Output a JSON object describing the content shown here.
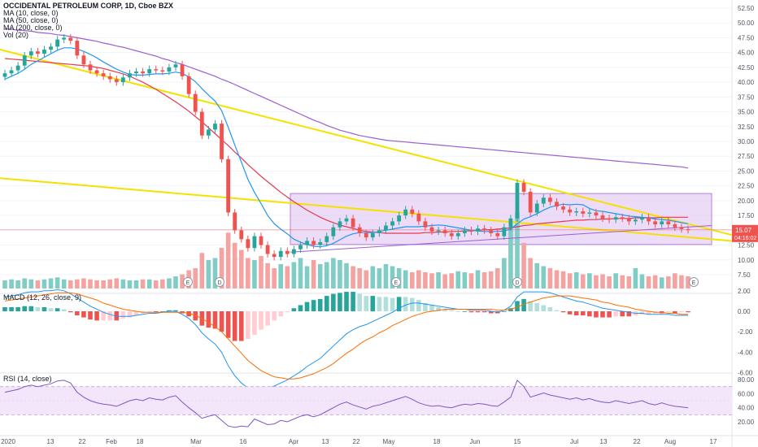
{
  "header": {
    "title": "OCCIDENTAL PETROLEUM CORP, 1D, Cboe BZX",
    "ma10": "MA (10, close, 0)",
    "ma50": "MA (50, close, 0)",
    "ma200": "MA (200, close, 0)",
    "vol": "Vol (20)"
  },
  "panes": {
    "macd_label": "MACD (12, 26, close, 9)",
    "rsi_label": "RSI (14, close)"
  },
  "price_tag": {
    "value": "15.07",
    "countdown": "04:16:02"
  },
  "colors": {
    "up": "#26a69a",
    "down": "#ef5350",
    "up_vol": "#7fcdc4",
    "down_vol": "#f4a3a1",
    "ma10": "#2196f3",
    "ma50": "#e53950",
    "ma200": "#9c5fd0",
    "trendline": "#f5e100",
    "box": "#e1c4f2",
    "rsi_band": "#f3e6fb",
    "macd": "#2196f3",
    "signal": "#ff6d00",
    "grid": "#f0f3fa"
  },
  "chart_data": {
    "type": "candlestick",
    "symbol": "OCCIDENTAL PETROLEUM CORP",
    "interval": "1D",
    "exchange": "Cboe BZX",
    "price_axis": {
      "ticks": [
        "52.50",
        "50.00",
        "47.50",
        "45.00",
        "42.50",
        "40.00",
        "37.50",
        "35.00",
        "32.50",
        "30.00",
        "27.50",
        "25.00",
        "22.50",
        "20.00",
        "17.50",
        "15.00",
        "12.50",
        "10.00",
        "7.50"
      ]
    },
    "macd_axis": {
      "ticks": [
        "2.00",
        "0.00",
        "-2.00",
        "-4.00",
        "-6.00"
      ]
    },
    "rsi_axis": {
      "ticks": [
        "80.00",
        "60.00",
        "40.00",
        "20.00"
      ]
    },
    "time_labels": [
      "2020",
      "13",
      "22",
      "Feb",
      "18",
      "Mar",
      "16",
      "Apr",
      "13",
      "22",
      "May",
      "18",
      "Jun",
      "15",
      "Jul",
      "13",
      "22",
      "Aug",
      "17"
    ],
    "rsi_band": [
      30,
      70
    ],
    "event_markers": [
      "E",
      "D",
      "E",
      "D",
      "E"
    ],
    "closes": [
      41.5,
      42.0,
      42.8,
      44.5,
      45.2,
      44.8,
      45.5,
      46.0,
      47.2,
      47.5,
      47.0,
      44.5,
      43.0,
      42.0,
      41.5,
      41.0,
      40.5,
      40.0,
      40.8,
      41.5,
      41.8,
      41.5,
      42.2,
      42.0,
      41.8,
      42.5,
      43.0,
      41.0,
      38.0,
      35.0,
      31.0,
      32.0,
      33.0,
      27.0,
      18.0,
      15.0,
      13.5,
      12.0,
      14.0,
      12.5,
      11.0,
      10.5,
      11.5,
      11.0,
      11.8,
      12.5,
      13.2,
      12.5,
      13.0,
      14.0,
      15.5,
      16.5,
      17.0,
      15.5,
      14.5,
      13.8,
      14.5,
      15.0,
      15.8,
      16.5,
      17.5,
      18.5,
      17.8,
      16.5,
      15.5,
      14.8,
      15.0,
      14.5,
      14.0,
      14.5,
      15.0,
      14.8,
      15.3,
      15.0,
      14.5,
      14.0,
      15.5,
      17.0,
      23.0,
      21.5,
      18.0,
      19.5,
      20.5,
      19.8,
      19.0,
      18.5,
      18.0,
      18.2,
      17.8,
      18.0,
      17.5,
      17.0,
      16.8,
      17.2,
      17.0,
      16.5,
      16.8,
      17.2,
      16.5,
      16.0,
      16.5,
      16.0,
      15.5,
      15.2,
      15.07
    ],
    "volumes": [
      8,
      9,
      8,
      10,
      9,
      8,
      9,
      10,
      11,
      9,
      8,
      9,
      10,
      9,
      8,
      8,
      9,
      10,
      9,
      8,
      8,
      9,
      9,
      8,
      9,
      10,
      12,
      14,
      18,
      20,
      35,
      28,
      30,
      40,
      55,
      45,
      38,
      30,
      28,
      32,
      25,
      20,
      24,
      22,
      26,
      30,
      22,
      28,
      24,
      26,
      30,
      28,
      25,
      22,
      20,
      18,
      22,
      20,
      24,
      22,
      20,
      18,
      16,
      18,
      16,
      15,
      16,
      14,
      15,
      17,
      16,
      15,
      18,
      16,
      17,
      20,
      30,
      60,
      75,
      45,
      30,
      25,
      22,
      20,
      18,
      17,
      15,
      16,
      14,
      15,
      13,
      14,
      12,
      15,
      13,
      12,
      20,
      14,
      12,
      13,
      11,
      12,
      15,
      13,
      12
    ],
    "ma10": [
      40.5,
      41.0,
      41.5,
      42.2,
      43.0,
      43.6,
      44.2,
      44.8,
      45.4,
      45.8,
      45.8,
      45.6,
      45.2,
      44.7,
      44.1,
      43.4,
      42.8,
      42.2,
      41.7,
      41.3,
      41.2,
      41.2,
      41.3,
      41.4,
      41.4,
      41.5,
      41.7,
      41.5,
      40.9,
      40.1,
      38.9,
      37.8,
      36.8,
      35.2,
      32.4,
      29.4,
      26.5,
      23.6,
      21.4,
      19.5,
      17.5,
      16.1,
      15.2,
      14.4,
      13.5,
      13.0,
      12.6,
      12.3,
      12.2,
      12.4,
      12.8,
      13.4,
      14.0,
      14.4,
      14.6,
      14.6,
      14.6,
      14.8,
      15.0,
      15.2,
      15.4,
      15.6,
      15.6,
      15.6,
      15.7,
      15.8,
      15.9,
      15.8,
      15.6,
      15.4,
      15.2,
      15.0,
      14.9,
      14.8,
      14.8,
      14.8,
      14.9,
      15.2,
      16.1,
      16.9,
      17.3,
      17.8,
      18.4,
      18.9,
      19.2,
      19.4,
      19.3,
      19.4,
      19.3,
      18.7,
      18.3,
      18.2,
      18.0,
      17.8,
      17.6,
      17.4,
      17.3,
      17.2,
      17.1,
      16.9,
      16.8,
      16.7,
      16.5,
      16.3,
      16.1
    ],
    "ma50": [
      44.0,
      43.9,
      43.8,
      43.7,
      43.6,
      43.5,
      43.4,
      43.3,
      43.2,
      43.1,
      43.0,
      42.9,
      42.8,
      42.7,
      42.5,
      42.3,
      42.0,
      41.7,
      41.4,
      41.0,
      40.5,
      40.0,
      39.4,
      38.8,
      38.1,
      37.4,
      36.7,
      35.9,
      35.1,
      34.2,
      33.3,
      32.3,
      31.3,
      30.3,
      29.3,
      28.2,
      27.2,
      26.1,
      25.1,
      24.1,
      23.2,
      22.3,
      21.4,
      20.6,
      19.8,
      19.1,
      18.4,
      17.8,
      17.2,
      16.7,
      16.3,
      15.9,
      15.6,
      15.3,
      15.0,
      14.8,
      14.7,
      14.6,
      14.5,
      14.5,
      14.5,
      14.5,
      14.5,
      14.5,
      14.6,
      14.6,
      14.7,
      14.7,
      14.8,
      14.8,
      14.9,
      14.9,
      15.0,
      15.1,
      15.1,
      15.2,
      15.3,
      15.4,
      15.6,
      15.8,
      15.9,
      16.1,
      16.2,
      16.3,
      16.4,
      16.5,
      16.6,
      16.7,
      16.7,
      16.8,
      16.8,
      16.9,
      16.9,
      17.0,
      17.0,
      17.0,
      17.1,
      17.1,
      17.1,
      17.1,
      17.2,
      17.2,
      17.2,
      17.2,
      17.2
    ],
    "ma200": [
      49.0,
      48.9,
      48.8,
      48.7,
      48.6,
      48.4,
      48.3,
      48.2,
      48.0,
      47.9,
      47.7,
      47.5,
      47.3,
      47.1,
      46.9,
      46.6,
      46.4,
      46.1,
      45.9,
      45.6,
      45.3,
      45.0,
      44.7,
      44.4,
      44.0,
      43.7,
      43.3,
      43.0,
      42.6,
      42.2,
      41.8,
      41.4,
      41.0,
      40.5,
      40.1,
      39.6,
      39.1,
      38.6,
      38.1,
      37.6,
      37.1,
      36.6,
      36.1,
      35.6,
      35.1,
      34.6,
      34.1,
      33.6,
      33.2,
      32.7,
      32.3,
      31.9,
      31.6,
      31.3,
      31.0,
      30.8,
      30.6,
      30.4,
      30.2,
      30.1,
      30.0,
      29.9,
      29.8,
      29.7,
      29.6,
      29.5,
      29.4,
      29.3,
      29.2,
      29.1,
      29.0,
      28.9,
      28.8,
      28.7,
      28.6,
      28.5,
      28.4,
      28.3,
      28.2,
      28.1,
      28.0,
      27.9,
      27.8,
      27.7,
      27.6,
      27.5,
      27.4,
      27.3,
      27.2,
      27.1,
      27.0,
      26.9,
      26.8,
      26.7,
      26.6,
      26.5,
      26.4,
      26.3,
      26.2,
      26.1,
      26.0,
      25.9,
      25.8,
      25.7,
      25.5
    ],
    "macd": [
      1.4,
      1.5,
      1.6,
      1.8,
      1.9,
      1.9,
      2.0,
      2.0,
      2.1,
      2.0,
      1.7,
      1.3,
      0.9,
      0.5,
      0.2,
      -0.1,
      -0.3,
      -0.5,
      -0.5,
      -0.5,
      -0.4,
      -0.3,
      -0.2,
      -0.2,
      -0.1,
      0.0,
      0.0,
      -0.3,
      -0.7,
      -1.3,
      -2.1,
      -2.7,
      -3.2,
      -4.0,
      -5.3,
      -6.3,
      -7.0,
      -7.5,
      -7.6,
      -7.6,
      -7.5,
      -7.3,
      -7.0,
      -6.7,
      -6.3,
      -5.9,
      -5.4,
      -5.0,
      -4.6,
      -4.0,
      -3.4,
      -2.8,
      -2.2,
      -1.8,
      -1.5,
      -1.3,
      -1.0,
      -0.7,
      -0.4,
      -0.1,
      0.3,
      0.6,
      0.8,
      0.8,
      0.7,
      0.6,
      0.5,
      0.4,
      0.3,
      0.2,
      0.2,
      0.1,
      0.1,
      0.1,
      0.0,
      -0.1,
      0.1,
      0.5,
      1.4,
      1.9,
      1.9,
      1.9,
      1.9,
      1.8,
      1.6,
      1.4,
      1.2,
      1.0,
      0.9,
      0.7,
      0.5,
      0.3,
      0.2,
      0.1,
      0.0,
      -0.1,
      -0.2,
      -0.2,
      -0.3,
      -0.3,
      -0.3,
      -0.3,
      -0.4,
      -0.4,
      -0.4
    ],
    "signal": [
      1.0,
      1.1,
      1.2,
      1.3,
      1.4,
      1.5,
      1.6,
      1.7,
      1.8,
      1.8,
      1.8,
      1.7,
      1.5,
      1.3,
      1.1,
      0.8,
      0.6,
      0.4,
      0.2,
      0.1,
      0.0,
      -0.1,
      -0.1,
      -0.1,
      -0.1,
      -0.1,
      -0.1,
      -0.1,
      -0.2,
      -0.4,
      -0.7,
      -1.1,
      -1.5,
      -2.0,
      -2.7,
      -3.4,
      -4.1,
      -4.8,
      -5.3,
      -5.8,
      -6.1,
      -6.4,
      -6.5,
      -6.6,
      -6.6,
      -6.5,
      -6.3,
      -6.1,
      -5.8,
      -5.5,
      -5.1,
      -4.6,
      -4.1,
      -3.7,
      -3.2,
      -2.8,
      -2.5,
      -2.1,
      -1.8,
      -1.4,
      -1.1,
      -0.8,
      -0.5,
      -0.3,
      -0.1,
      0.0,
      0.1,
      0.2,
      0.2,
      0.2,
      0.2,
      0.2,
      0.2,
      0.2,
      0.2,
      0.1,
      0.1,
      0.2,
      0.4,
      0.7,
      0.9,
      1.1,
      1.3,
      1.4,
      1.5,
      1.5,
      1.5,
      1.4,
      1.3,
      1.2,
      1.1,
      0.9,
      0.8,
      0.6,
      0.5,
      0.4,
      0.2,
      0.1,
      0.0,
      -0.1,
      -0.1,
      -0.2,
      -0.2,
      -0.3,
      -0.3
    ],
    "rsi": [
      62,
      64,
      66,
      70,
      72,
      70,
      72,
      74,
      78,
      79,
      75,
      62,
      55,
      50,
      47,
      45,
      44,
      42,
      46,
      50,
      52,
      50,
      54,
      52,
      51,
      55,
      57,
      48,
      40,
      33,
      25,
      28,
      30,
      22,
      14,
      12,
      14,
      13,
      24,
      20,
      16,
      17,
      22,
      20,
      24,
      28,
      30,
      27,
      30,
      35,
      40,
      45,
      48,
      44,
      41,
      38,
      42,
      44,
      47,
      50,
      53,
      56,
      52,
      47,
      44,
      42,
      43,
      41,
      40,
      43,
      45,
      44,
      46,
      45,
      43,
      42,
      48,
      55,
      79,
      70,
      55,
      58,
      61,
      58,
      56,
      54,
      52,
      54,
      51,
      53,
      50,
      48,
      47,
      50,
      48,
      46,
      48,
      50,
      46,
      44,
      47,
      44,
      42,
      41,
      40
    ]
  }
}
